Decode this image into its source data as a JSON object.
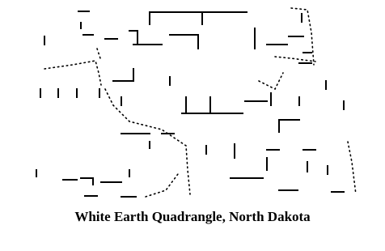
{
  "map": {
    "caption": "White Earth Quadrangle, North Dakota"
  }
}
